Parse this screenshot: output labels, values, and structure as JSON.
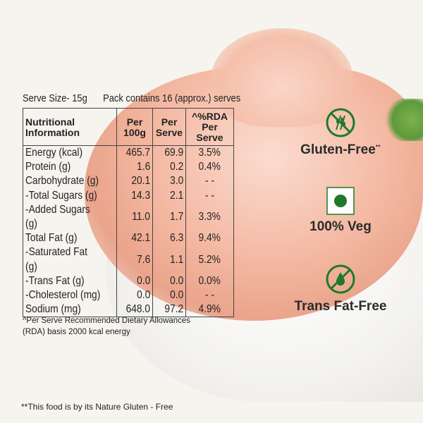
{
  "serve_size": "Serve Size- 15g",
  "pack_info": "Pack contains 16 (approx.) serves",
  "table": {
    "headers": [
      "Nutritional Information",
      "Per 100g",
      "Per Serve",
      "^%RDA Per Serve"
    ],
    "rows": [
      [
        "Energy (kcal)",
        "465.7",
        "69.9",
        "3.5%"
      ],
      [
        "Protein (g)",
        "1.6",
        "0.2",
        "0.4%"
      ],
      [
        "Carbohydrate (g)",
        "20.1",
        "3.0",
        "- -"
      ],
      [
        "-Total Sugars (g)",
        "14.3",
        "2.1",
        "- -"
      ],
      [
        "-Added Sugars (g)",
        "11.0",
        "1.7",
        "3.3%"
      ],
      [
        "Total Fat (g)",
        "42.1",
        "6.3",
        "9.4%"
      ],
      [
        "-Saturated Fat (g)",
        "7.6",
        "1.1",
        "5.2%"
      ],
      [
        "-Trans Fat (g)",
        "0.0",
        "0.0",
        "0.0%"
      ],
      [
        "-Cholesterol (mg)",
        "0.0",
        "0.0",
        "- -"
      ],
      [
        "Sodium (mg)",
        "648.0",
        "97.2",
        "4.9%"
      ]
    ]
  },
  "footnote_line1": "^Per Serve Recommended Dietary Allowances",
  "footnote_line2": "(RDA) basis 2000 kcal energy",
  "bottom_note": "**This food is by its Nature Gluten - Free",
  "badges": [
    {
      "label": "Gluten-Free",
      "mark": "**",
      "icon": "no-wheat-icon"
    },
    {
      "label": "100% Veg",
      "icon": "veg-symbol-icon"
    },
    {
      "label": "Trans Fat-Free",
      "icon": "no-oil-drop-icon"
    }
  ],
  "colors": {
    "accent_green": "#1e7a2a",
    "background": "#f6f4ee",
    "cream": "#f4b9a3"
  }
}
